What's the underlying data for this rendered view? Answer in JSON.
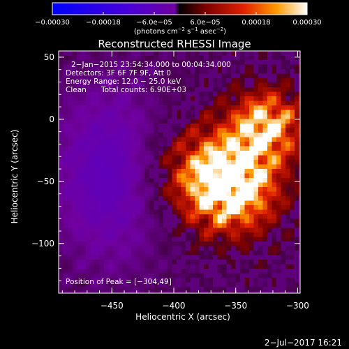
{
  "chart_data": {
    "type": "heatmap",
    "title": "Reconstructed RHESSI Image",
    "xlabel": "Heliocentric X (arcsec)",
    "ylabel": "Heliocentric Y (arcsec)",
    "xlim": [
      -493,
      -298
    ],
    "ylim": [
      -140,
      55
    ],
    "x_ticks": [
      -450,
      -400,
      -350,
      -300
    ],
    "y_ticks": [
      50,
      0,
      -50,
      -100
    ],
    "x_tick_labels": [
      "−450",
      "−400",
      "−350",
      "−300"
    ],
    "y_tick_labels": [
      "50",
      "0",
      "−50",
      "−100"
    ],
    "colorbar": {
      "range": [
        -0.0003,
        0.0003
      ],
      "ticks": [
        -0.0003,
        -0.00018,
        -6e-05,
        6e-05,
        0.00018,
        0.0003
      ],
      "tick_labels": [
        "−0.00030",
        "−0.00018",
        "−6.0e−05",
        "6.0e−05",
        "0.00018",
        "0.00030"
      ],
      "unit_prefix": "(photons cm",
      "unit_exp1": "−2",
      "unit_mid": " s",
      "unit_exp2": "−1",
      "unit_mid2": " asec",
      "unit_exp3": "−2",
      "unit_suffix": ")"
    },
    "peak": {
      "x": -304,
      "y": 49
    },
    "annotations": {
      "time_range": "2−Jan−2015 23:54:34.000 to 00:04:34.000",
      "detectors": "Detectors: 3F 6F 7F 9F, Att 0",
      "energy": "Energy Range: 12.0 − 25.0 keV",
      "method": "Clean",
      "counts": "Total counts: 6.90E+03",
      "peak_label": "Position of Peak = [−304,49]"
    }
  },
  "footer": {
    "timestamp": "2−Jul−2017 16:21"
  }
}
